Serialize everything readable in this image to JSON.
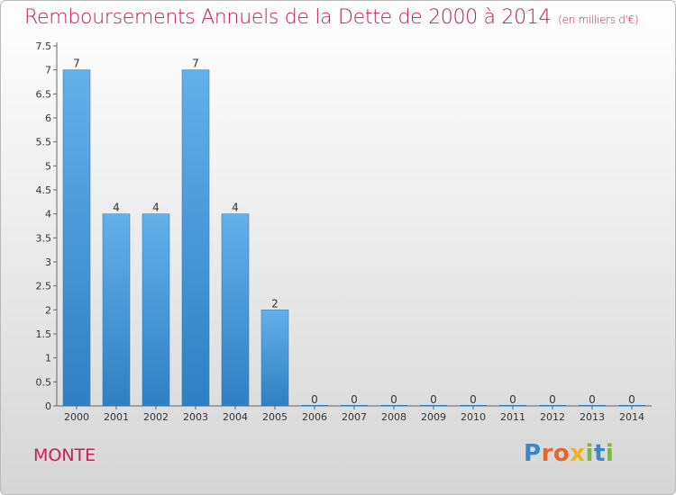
{
  "title": "Remboursements Annuels de la Dette de 2000 à 2014",
  "unit": "(en milliers d'€)",
  "location": "MONTE",
  "brand": "Proxiti",
  "colors": {
    "bar": "#3a8fd4",
    "bar_light": "#63b0ea",
    "title": "#c2185b"
  },
  "chart_data": {
    "type": "bar",
    "title": "Remboursements Annuels de la Dette de 2000 à 2014",
    "subtitle": "(en milliers d'€)",
    "categories": [
      "2000",
      "2001",
      "2002",
      "2003",
      "2004",
      "2005",
      "2006",
      "2007",
      "2008",
      "2009",
      "2010",
      "2011",
      "2012",
      "2013",
      "2014"
    ],
    "values": [
      7,
      4,
      4,
      7,
      4,
      2,
      0,
      0,
      0,
      0,
      0,
      0,
      0,
      0,
      0
    ],
    "data_labels": [
      "7",
      "4",
      "4",
      "7",
      "4",
      "2",
      "0",
      "0",
      "0",
      "0",
      "0",
      "0",
      "0",
      "0",
      "0"
    ],
    "yticks": [
      "0",
      "0.5",
      "1",
      "1.5",
      "2",
      "2.5",
      "3",
      "3.5",
      "4",
      "4.5",
      "5",
      "5.5",
      "6",
      "6.5",
      "7",
      "7.5"
    ],
    "ylim": [
      0,
      7.5
    ],
    "grid": false
  }
}
